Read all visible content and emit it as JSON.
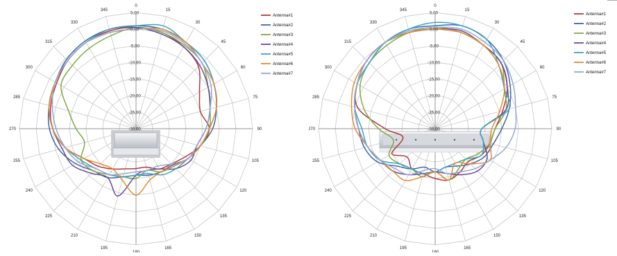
{
  "colors": {
    "Antenna#1": "#b5383a",
    "Antenna#2": "#3e66a8",
    "Antenna#3": "#7fa940",
    "Antenna#4": "#6a4a98",
    "Antenna#5": "#3aa4c1",
    "Antenna#6": "#e58a2e",
    "Antenna#7": "#93a8d3",
    "grid": "#c6c6c6",
    "axis": "#909090"
  },
  "chart_data": [
    {
      "type": "polar",
      "title": "",
      "angle_labels": [
        "0",
        "15",
        "30",
        "45",
        "60",
        "75",
        "90",
        "105",
        "120",
        "135",
        "150",
        "165",
        "180",
        "195",
        "210",
        "225",
        "240",
        "255",
        "270",
        "285",
        "300",
        "315",
        "330",
        "345"
      ],
      "radial_labels": [
        "5,00",
        "0,00",
        "-5,00",
        "-10,00",
        "-15,00",
        "-20,00",
        "-25,00",
        "-30,00"
      ],
      "rlim": [
        -30,
        5
      ],
      "grid": true,
      "legend_position": "right",
      "device_image": "plain-module",
      "angles": [
        0,
        15,
        30,
        45,
        60,
        75,
        90,
        105,
        120,
        135,
        150,
        165,
        180,
        195,
        210,
        225,
        240,
        255,
        270,
        285,
        300,
        315,
        330,
        345
      ],
      "series": [
        {
          "name": "Antenna#1",
          "values": [
            0.5,
            0,
            -1.5,
            -3.5,
            -8,
            -10,
            -8,
            -10,
            -13,
            -15,
            -16,
            -18,
            -18,
            -17.5,
            -16,
            -14,
            -12,
            -8,
            -5,
            -3.5,
            -2.5,
            -1,
            0,
            0.5
          ]
        },
        {
          "name": "Antenna#2",
          "values": [
            1,
            1,
            0,
            -1,
            -3,
            -5,
            -7,
            -10,
            -12,
            -14.5,
            -15,
            -15.5,
            -16,
            -15,
            -13,
            -12,
            -9,
            -6,
            -4,
            -3,
            -2,
            -0.5,
            0.5,
            1
          ]
        },
        {
          "name": "Antenna#3",
          "values": [
            0.5,
            0,
            -1,
            -2,
            -5,
            -7,
            -8,
            -10,
            -12,
            -14,
            -15,
            -17,
            -15,
            -15,
            -14,
            -12,
            -11,
            -14,
            -12,
            -9,
            -4,
            -3,
            -2,
            -1
          ]
        },
        {
          "name": "Antenna#4",
          "values": [
            0.5,
            -0.5,
            -1.5,
            -3,
            -5,
            -7,
            -9,
            -11,
            -11,
            -13,
            -16,
            -17,
            -16,
            -9,
            -13,
            -11,
            -8,
            -7,
            -5,
            -3,
            -2,
            -1,
            0,
            1
          ]
        },
        {
          "name": "Antenna#5",
          "values": [
            1,
            2,
            0,
            -1,
            -3,
            -5,
            -8,
            -10,
            -12,
            -13,
            -14,
            -16,
            -16,
            -15,
            -14,
            -13,
            -11,
            -8,
            -5,
            -3,
            -2,
            -1,
            0,
            1
          ]
        },
        {
          "name": "Antenna#6",
          "values": [
            0,
            1,
            0,
            -2,
            -3,
            -5,
            -8,
            -10,
            -12,
            -14,
            -15,
            -14,
            -10,
            -14,
            -16,
            -15,
            -12,
            -8,
            -5,
            -3,
            -2,
            -1,
            0,
            0
          ]
        },
        {
          "name": "Antenna#7",
          "values": [
            0,
            0.5,
            -0.5,
            -2,
            -4,
            -7,
            -9,
            -11,
            -12,
            -15,
            -17,
            -17,
            -17,
            -16,
            -14,
            -13,
            -10,
            -8,
            -6,
            -4,
            -2,
            -1,
            0,
            0
          ]
        }
      ]
    },
    {
      "type": "polar",
      "title": "",
      "angle_labels": [
        "0",
        "15",
        "30",
        "45",
        "60",
        "75",
        "90",
        "105",
        "120",
        "135",
        "150",
        "165",
        "180",
        "195",
        "210",
        "225",
        "240",
        "255",
        "270",
        "285",
        "300",
        "315",
        "330",
        "345"
      ],
      "radial_labels": [
        "5,00",
        "0,00",
        "-5,00",
        "-10,00",
        "-15,00",
        "-20,00",
        "-25,00",
        "-30,00"
      ],
      "rlim": [
        -30,
        5
      ],
      "grid": true,
      "legend_position": "right",
      "device_image": "module-with-connectors",
      "angles": [
        0,
        15,
        30,
        45,
        60,
        75,
        90,
        105,
        120,
        135,
        150,
        165,
        180,
        195,
        210,
        225,
        240,
        255,
        270,
        285,
        300,
        315,
        330,
        345
      ],
      "series": [
        {
          "name": "Antenna#1",
          "values": [
            0,
            0,
            -1,
            -2,
            -5,
            -9,
            -12,
            -13,
            -14,
            -16,
            -15,
            -14,
            -15,
            -16,
            -16,
            -18,
            -15,
            -20,
            -15,
            -6,
            -3,
            -1,
            0,
            0
          ]
        },
        {
          "name": "Antenna#2",
          "values": [
            1,
            2,
            1,
            -1,
            -4,
            -7,
            -10,
            -12,
            -13,
            -15,
            -17,
            -18,
            -17,
            -18,
            -16,
            -14,
            -10,
            -8,
            -7,
            -5,
            -3,
            -2,
            0,
            1
          ]
        },
        {
          "name": "Antenna#3",
          "values": [
            0.5,
            0,
            -1,
            -2,
            -6,
            -8,
            -12,
            -13,
            -15,
            -17,
            -16,
            -14,
            -17,
            -15,
            -16,
            -15,
            -14,
            -17,
            -13,
            -8,
            -4,
            -2,
            -1,
            0
          ]
        },
        {
          "name": "Antenna#4",
          "values": [
            0,
            0.5,
            -1,
            -2,
            -5,
            -8,
            -16,
            -15,
            -12,
            -12,
            -14,
            -16,
            -17,
            -16,
            -14,
            -12,
            -11,
            -9,
            -7,
            -5,
            -3,
            -1,
            0,
            0
          ]
        },
        {
          "name": "Antenna#5",
          "values": [
            2,
            2,
            1,
            -3,
            -6,
            -7,
            -16,
            -15,
            -14,
            -17,
            -18,
            -18,
            -17,
            -16,
            -16,
            -15,
            -11,
            -9,
            -8,
            -5,
            -3,
            -2,
            0,
            1
          ]
        },
        {
          "name": "Antenna#6",
          "values": [
            0,
            0,
            -1,
            -3,
            -6,
            -10,
            -13,
            -13,
            -11,
            -15,
            -18,
            -14,
            -17,
            -15,
            -12,
            -12,
            -11,
            -9,
            -6,
            -4,
            -2,
            -1,
            0,
            0
          ]
        },
        {
          "name": "Antenna#7",
          "values": [
            0.5,
            1,
            0,
            -1,
            -3,
            -5,
            -6,
            -8,
            -11,
            -13,
            -15,
            -16,
            -18,
            -17,
            -14,
            -13,
            -11,
            -9,
            -7,
            -5,
            -3,
            -1,
            0,
            0.5
          ]
        }
      ]
    }
  ]
}
